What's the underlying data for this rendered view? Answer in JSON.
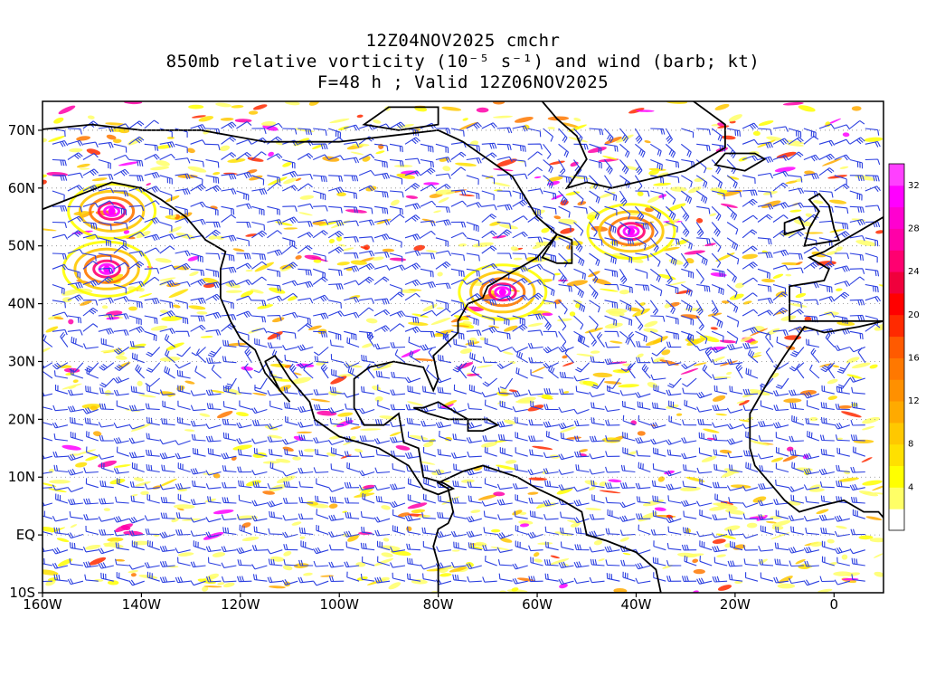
{
  "title": {
    "line1": "12Z04NOV2025 cmchr",
    "line2": "850mb relative vorticity (10⁻⁵ s⁻¹) and wind (barb; kt)",
    "line3": "F=48 h ; Valid 12Z06NOV2025"
  },
  "map_extent": {
    "lon_min": -160,
    "lon_max": 10,
    "lat_min": -10,
    "lat_max": 75
  },
  "lat_labels": [
    {
      "lat": 70,
      "text": "70N"
    },
    {
      "lat": 60,
      "text": "60N"
    },
    {
      "lat": 50,
      "text": "50N"
    },
    {
      "lat": 40,
      "text": "40N"
    },
    {
      "lat": 30,
      "text": "30N"
    },
    {
      "lat": 20,
      "text": "20N"
    },
    {
      "lat": 10,
      "text": "10N"
    },
    {
      "lat": 0,
      "text": "EQ"
    },
    {
      "lat": -10,
      "text": "10S"
    }
  ],
  "lon_labels": [
    {
      "lon": -160,
      "text": "160W"
    },
    {
      "lon": -140,
      "text": "140W"
    },
    {
      "lon": -120,
      "text": "120W"
    },
    {
      "lon": -100,
      "text": "100W"
    },
    {
      "lon": -80,
      "text": "80W"
    },
    {
      "lon": -60,
      "text": "60W"
    },
    {
      "lon": -40,
      "text": "40W"
    },
    {
      "lon": -20,
      "text": "20W"
    },
    {
      "lon": 0,
      "text": "0"
    }
  ],
  "colorbar": {
    "levels": [
      {
        "color": "#ffffff",
        "label": ""
      },
      {
        "color": "#ffff66",
        "label": "4"
      },
      {
        "color": "#ffff00",
        "label": ""
      },
      {
        "color": "#ffe000",
        "label": "8"
      },
      {
        "color": "#ffc800",
        "label": ""
      },
      {
        "color": "#ffaa00",
        "label": "12"
      },
      {
        "color": "#ff9000",
        "label": ""
      },
      {
        "color": "#ff7800",
        "label": "16"
      },
      {
        "color": "#ff5a00",
        "label": ""
      },
      {
        "color": "#ff2a00",
        "label": "20"
      },
      {
        "color": "#ff0000",
        "label": ""
      },
      {
        "color": "#f0003c",
        "label": "24"
      },
      {
        "color": "#ff0070",
        "label": ""
      },
      {
        "color": "#ff00a8",
        "label": "28"
      },
      {
        "color": "#ff00d0",
        "label": ""
      },
      {
        "color": "#ff00ff",
        "label": "32"
      },
      {
        "color": "#ff40ff",
        "label": ""
      }
    ]
  },
  "colors": {
    "barb": "#2b3fe0",
    "coast": "#000000",
    "frame": "#000000"
  },
  "features": {
    "vorticity_maxima": [
      {
        "lon": -146,
        "lat": 56,
        "value": 32
      },
      {
        "lon": -41,
        "lat": 52.5,
        "value": 32
      },
      {
        "lon": -67,
        "lat": 42,
        "value": 32
      },
      {
        "lon": -147,
        "lat": 46,
        "value": 28
      }
    ]
  }
}
